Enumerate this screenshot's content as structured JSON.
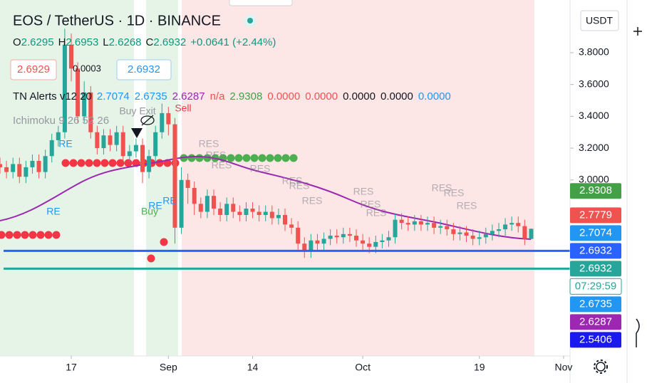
{
  "chart_data": {
    "type": "candlestick",
    "title": "EOS / TetherUS · 1D · BINANCE",
    "legend": [
      {
        "label": "O",
        "value": "2.6295"
      },
      {
        "label": "H",
        "value": "2.6953"
      },
      {
        "label": "L",
        "value": "2.6268"
      },
      {
        "label": "C",
        "value": "2.6932"
      },
      {
        "label": "",
        "value": "+0.0641 (+2.44%)"
      }
    ],
    "buttons": {
      "sell": "2.6929",
      "spread": "0.0003",
      "buy": "2.6932"
    },
    "indicators": [
      {
        "name": "TN Alerts v12 20",
        "values": [
          {
            "text": "2.7074",
            "color": "#2196f3"
          },
          {
            "text": "2.6735",
            "color": "#2196f3"
          },
          {
            "text": "2.6287",
            "color": "#9c27b0"
          },
          {
            "text": "n/a",
            "color": "#ef5350"
          },
          {
            "text": "2.9308",
            "color": "#43a047"
          },
          {
            "text": "0.0000",
            "color": "#ef5350"
          },
          {
            "text": "0.0000",
            "color": "#ef5350"
          },
          {
            "text": "0.0000",
            "color": "#131722"
          },
          {
            "text": "0.0000",
            "color": "#131722"
          },
          {
            "text": "0.0000",
            "color": "#2196f3"
          }
        ]
      },
      {
        "name": "Ichimoku 9 26 52 26",
        "values": []
      }
    ],
    "currency": "USDT",
    "up_color": "#26a69a",
    "down_color": "#ef5350",
    "xlim": [
      0,
      88
    ],
    "xticks": [
      {
        "value": 11,
        "label": "17"
      },
      {
        "value": 26,
        "label": "Sep"
      },
      {
        "value": 39,
        "label": "14"
      },
      {
        "value": 56,
        "label": "Oct"
      },
      {
        "value": 74,
        "label": "19"
      },
      {
        "value": 87,
        "label": "Nov"
      }
    ],
    "ylim": [
      1.894,
      4.131
    ],
    "yticks": [
      {
        "value": 3.0,
        "label": "3.0000"
      },
      {
        "value": 3.2,
        "label": "3.2000"
      },
      {
        "value": 3.4,
        "label": "3.4000"
      },
      {
        "value": 3.6,
        "label": "3.6000"
      },
      {
        "value": 3.8,
        "label": "3.8000"
      }
    ],
    "open": [
      3.1,
      3.08,
      3.05,
      3.1,
      3.02,
      3.08,
      3.12,
      3.05,
      3.15,
      3.25,
      3.3,
      3.85,
      3.7,
      3.4,
      3.55,
      3.3,
      3.2,
      3.28,
      3.22,
      3.3,
      3.15,
      3.18,
      3.22,
      3.05,
      3.15,
      3.3,
      3.42,
      3.35,
      2.7,
      3.0,
      2.95,
      2.85,
      2.8,
      2.9,
      2.82,
      2.78,
      2.85,
      2.8,
      2.78,
      2.82,
      2.8,
      2.78,
      2.8,
      2.76,
      2.78,
      2.72,
      2.7,
      2.6,
      2.55,
      2.62,
      2.6,
      2.63,
      2.65,
      2.64,
      2.66,
      2.65,
      2.62,
      2.6,
      2.58,
      2.61,
      2.62,
      2.64,
      2.75,
      2.73,
      2.72,
      2.74,
      2.72,
      2.73,
      2.7,
      2.71,
      2.69,
      2.66,
      2.67,
      2.65,
      2.63,
      2.64,
      2.66,
      2.68,
      2.69,
      2.72,
      2.73,
      2.71,
      2.6295
    ],
    "high": [
      3.14,
      3.12,
      3.14,
      3.14,
      3.12,
      3.16,
      3.16,
      3.19,
      3.29,
      3.34,
      3.95,
      3.92,
      3.74,
      3.62,
      3.59,
      3.34,
      3.32,
      3.32,
      3.34,
      3.34,
      3.22,
      3.26,
      3.26,
      3.19,
      3.34,
      3.48,
      3.46,
      3.39,
      3.08,
      3.04,
      2.99,
      2.89,
      2.94,
      2.94,
      2.86,
      2.89,
      2.89,
      2.84,
      2.86,
      2.86,
      2.84,
      2.84,
      2.84,
      2.82,
      2.82,
      2.76,
      2.74,
      2.64,
      2.66,
      2.66,
      2.67,
      2.69,
      2.69,
      2.7,
      2.7,
      2.69,
      2.66,
      2.64,
      2.65,
      2.66,
      2.68,
      2.79,
      2.79,
      2.77,
      2.78,
      2.78,
      2.77,
      2.77,
      2.75,
      2.75,
      2.73,
      2.71,
      2.71,
      2.69,
      2.68,
      2.7,
      2.72,
      2.73,
      2.76,
      2.77,
      2.77,
      2.75,
      2.6953
    ],
    "low": [
      3.04,
      3.01,
      3.01,
      2.98,
      2.98,
      3.04,
      3.01,
      3.01,
      3.11,
      3.21,
      3.26,
      3.62,
      3.36,
      3.36,
      3.26,
      3.16,
      3.16,
      3.18,
      3.18,
      3.11,
      3.11,
      3.14,
      2.98,
      3.01,
      3.11,
      3.26,
      3.28,
      2.6,
      2.66,
      2.85,
      2.78,
      2.76,
      2.76,
      2.78,
      2.74,
      2.74,
      2.76,
      2.74,
      2.74,
      2.76,
      2.74,
      2.74,
      2.72,
      2.72,
      2.68,
      2.66,
      2.56,
      2.51,
      2.51,
      2.56,
      2.56,
      2.59,
      2.6,
      2.6,
      2.61,
      2.58,
      2.56,
      2.54,
      2.54,
      2.57,
      2.58,
      2.6,
      2.69,
      2.68,
      2.68,
      2.68,
      2.68,
      2.66,
      2.66,
      2.65,
      2.62,
      2.62,
      2.61,
      2.59,
      2.59,
      2.6,
      2.62,
      2.64,
      2.65,
      2.68,
      2.67,
      2.59,
      2.6268
    ],
    "close": [
      3.08,
      3.05,
      3.1,
      3.02,
      3.08,
      3.12,
      3.05,
      3.15,
      3.25,
      3.3,
      3.85,
      3.7,
      3.4,
      3.55,
      3.3,
      3.2,
      3.28,
      3.22,
      3.3,
      3.15,
      3.18,
      3.22,
      3.05,
      3.15,
      3.3,
      3.42,
      3.35,
      2.7,
      3.0,
      2.95,
      2.85,
      2.8,
      2.9,
      2.82,
      2.78,
      2.85,
      2.8,
      2.78,
      2.82,
      2.8,
      2.78,
      2.8,
      2.76,
      2.78,
      2.72,
      2.7,
      2.6,
      2.55,
      2.62,
      2.6,
      2.63,
      2.65,
      2.64,
      2.66,
      2.65,
      2.62,
      2.6,
      2.58,
      2.61,
      2.62,
      2.64,
      2.75,
      2.73,
      2.72,
      2.74,
      2.72,
      2.73,
      2.7,
      2.71,
      2.69,
      2.66,
      2.67,
      2.65,
      2.63,
      2.64,
      2.66,
      2.68,
      2.69,
      2.72,
      2.73,
      2.71,
      2.63,
      2.6932
    ],
    "price_tags": [
      {
        "value": 2.9308,
        "color": "#43a047"
      },
      {
        "value": 2.7779,
        "color": "#ef5350"
      },
      {
        "value": 2.7074,
        "color": "#2196f3"
      },
      {
        "value": 2.6932,
        "color": "#2962ff",
        "line": true
      },
      {
        "value": 2.6932,
        "color": "#26a69a",
        "line": true
      },
      {
        "label": "07:29:59",
        "color": "#ffffff"
      },
      {
        "value": 2.6735,
        "color": "#2196f3"
      },
      {
        "value": 2.6287,
        "color": "#9c27b0"
      },
      {
        "value": 2.5406,
        "color": "#1a1aee"
      }
    ],
    "annotations": [
      "RE",
      "RE",
      "RE",
      "RE",
      "Buy",
      "Buy Exit",
      "Sell",
      "RES",
      "RES",
      "RES",
      "RES",
      "RES",
      "RES",
      "RES",
      "RES",
      "RES",
      "RES",
      "RES",
      "RES",
      "RES"
    ]
  }
}
